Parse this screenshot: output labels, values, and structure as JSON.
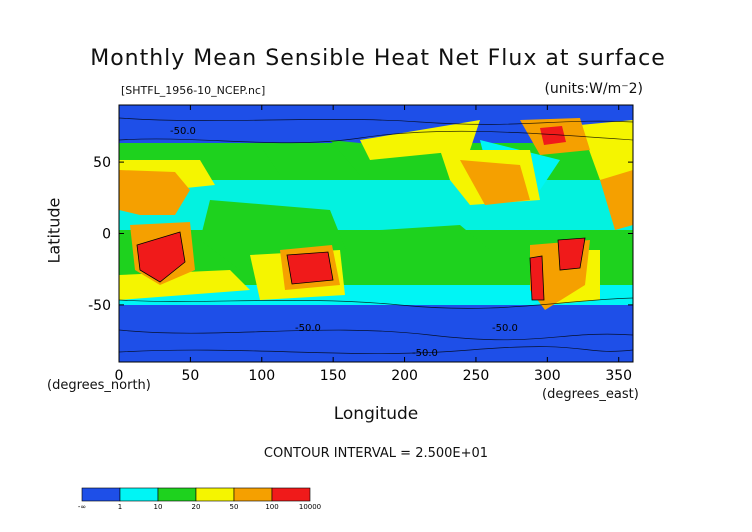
{
  "chart_data": {
    "type": "heatmap",
    "title": "Monthly Mean Sensible Heat Net Flux at surface",
    "source_file": "[SHTFL_1956-10_NCEP.nc]",
    "units": "(units:W/m⁻2)",
    "xlabel": "Longitude",
    "xunit": "(degrees_east)",
    "ylabel": "Latitude",
    "yunit": "(degrees_north)",
    "xlim": [
      0,
      360
    ],
    "ylim": [
      -90,
      90
    ],
    "x_ticks": [
      "0",
      "50",
      "100",
      "150",
      "200",
      "250",
      "300",
      "350"
    ],
    "y_ticks": [
      "50",
      "0",
      "-50"
    ],
    "contour_interval": "CONTOUR INTERVAL = 2.500E+01",
    "contour_labels": [
      "-50.0",
      "-50.0",
      "-50.0",
      "-50.0"
    ],
    "legend": {
      "labels": [
        "-∞",
        "1",
        "10",
        "20",
        "50",
        "100",
        "10000"
      ],
      "colors": [
        "#1e4fe8",
        "#00f5f5",
        "#1ed21e",
        "#f5f500",
        "#f5a000",
        "#f01a1a"
      ]
    },
    "grid": false
  }
}
